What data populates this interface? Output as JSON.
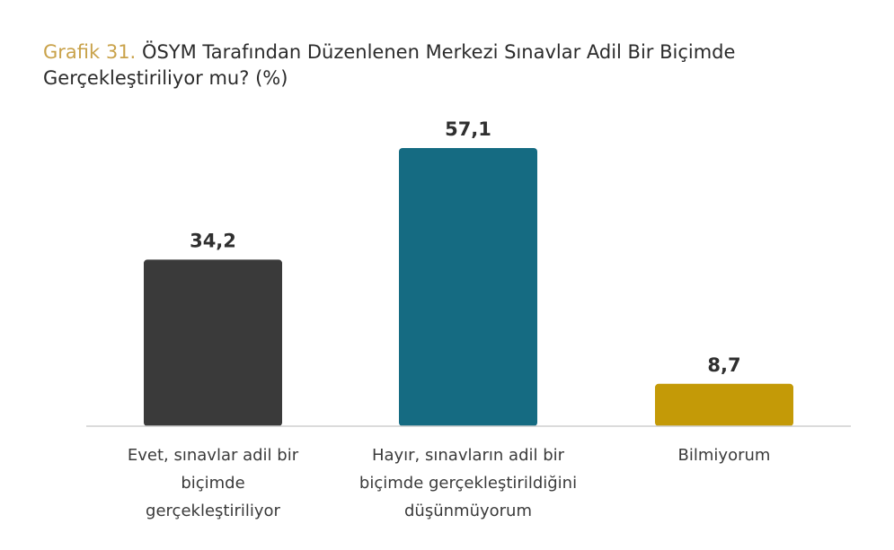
{
  "title": {
    "prefix": "Grafik 31.",
    "text": "ÖSYM Tarafından Düzenlenen Merkezi Sınavlar Adil Bir Biçimde Gerçekleştiriliyor mu? (%)"
  },
  "colors": {
    "title_prefix": "#c9a24a",
    "baseline": "#cfcfcf"
  },
  "chart_data": {
    "type": "bar",
    "categories": [
      [
        "Evet, sınavlar adil bir",
        "biçimde",
        "gerçekleştiriliyor"
      ],
      [
        "Hayır, sınavların adil bir",
        "biçimde gerçekleştirildiğini",
        "düşünmüyorum"
      ],
      [
        "Bilmiyorum"
      ]
    ],
    "values": [
      34.2,
      57.1,
      8.7
    ],
    "value_labels": [
      "34,2",
      "57,1",
      "8,7"
    ],
    "bar_colors": [
      "#3a3a3a",
      "#156b82",
      "#c49a07"
    ],
    "xlabel": "",
    "ylabel": "",
    "grid": false,
    "legend": "none"
  }
}
